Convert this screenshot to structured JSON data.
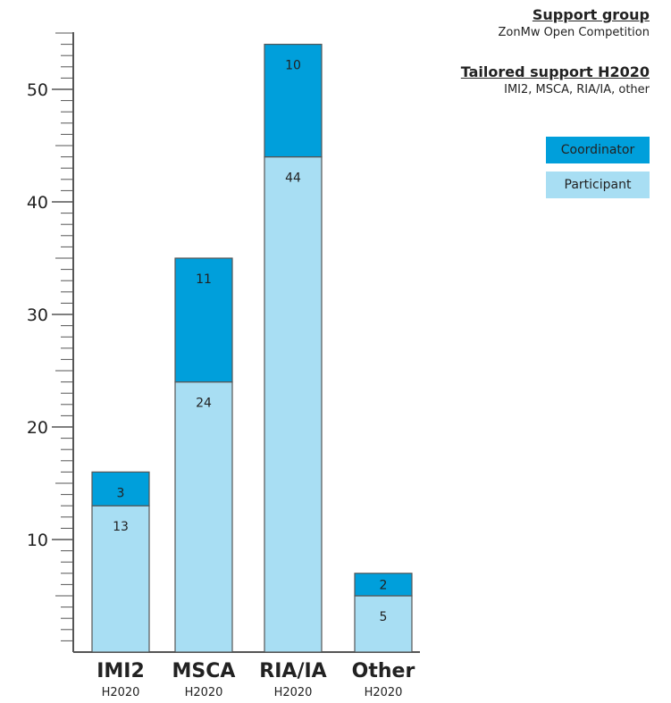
{
  "header": {
    "group_title": "Support group",
    "group_subtitle": "ZonMw Open Competition",
    "tailored_title": "Tailored support H2020",
    "tailored_subtitle": "IMI2, MSCA, RIA/IA, other"
  },
  "legend": {
    "coordinator_label": "Coordinator",
    "participant_label": "Participant"
  },
  "colors": {
    "coordinator": "#009fdb",
    "participant": "#a8def3",
    "bar_border": "#555555",
    "axis": "#555555"
  },
  "chart_data": {
    "type": "bar",
    "stacked": true,
    "categories": [
      "IMI2",
      "MSCA",
      "RIA/IA",
      "Other"
    ],
    "category_sublabels": [
      "H2020",
      "H2020",
      "H2020",
      "H2020"
    ],
    "series": [
      {
        "name": "Participant",
        "values": [
          13,
          24,
          44,
          5
        ]
      },
      {
        "name": "Coordinator",
        "values": [
          3,
          11,
          10,
          2
        ]
      }
    ],
    "y_ticks": [
      10,
      20,
      30,
      40,
      50
    ],
    "ylim": [
      0,
      55
    ],
    "minor_tick_step": 1,
    "grid": false,
    "legend_position": "top-right"
  }
}
